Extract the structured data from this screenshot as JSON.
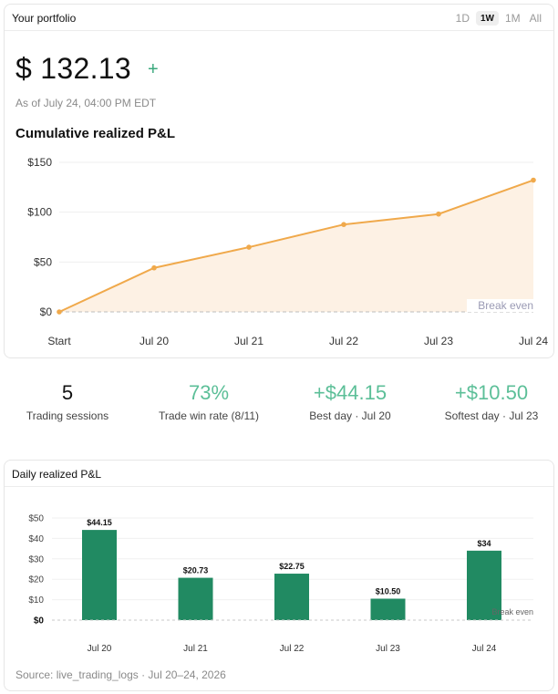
{
  "header": {
    "title": "Your portfolio",
    "ranges": [
      "1D",
      "1W",
      "1M",
      "All"
    ],
    "selected_range": "1W"
  },
  "summary": {
    "value": "$ 132.13",
    "as_of": "As of July 24, 04:00 PM EDT",
    "chart_title": "Cumulative realized P&L"
  },
  "stats": [
    {
      "value": "5",
      "label": "Trading sessions",
      "tone": "dark"
    },
    {
      "value": "73%",
      "label": "Trade win rate (8/11)",
      "tone": "green"
    },
    {
      "value": "+$44.15",
      "label": "Best day · Jul 20",
      "tone": "green"
    },
    {
      "value": "+$10.50",
      "label": "Softest day · Jul 23",
      "tone": "green"
    }
  ],
  "daily": {
    "title": "Daily realized P&L",
    "source": "Source: live_trading_logs · Jul 20–24, 2026"
  },
  "chart_data": [
    {
      "type": "area",
      "title": "Cumulative realized P&L",
      "categories": [
        "Start",
        "Jul 20",
        "Jul 21",
        "Jul 22",
        "Jul 23",
        "Jul 24"
      ],
      "values": [
        0,
        44.15,
        64.88,
        87.63,
        98.13,
        132.13
      ],
      "yticks": [
        "$0",
        "$50",
        "$100",
        "$150"
      ],
      "ylim": [
        0,
        150
      ],
      "annotation": "Break even",
      "color": "#f0a94b",
      "fill": "#fdf1e4",
      "grid": true
    },
    {
      "type": "bar",
      "title": "Daily realized P&L",
      "categories": [
        "Jul 20",
        "Jul 21",
        "Jul 22",
        "Jul 23",
        "Jul 24"
      ],
      "values": [
        44.15,
        20.73,
        22.75,
        10.5,
        34
      ],
      "labels": [
        "$44.15",
        "$20.73",
        "$22.75",
        "$10.50",
        "$34"
      ],
      "yticks": [
        "$0",
        "$10",
        "$20",
        "$30",
        "$40",
        "$50"
      ],
      "ylim": [
        0,
        50
      ],
      "annotation": "Break even",
      "color": "#218a62",
      "grid": true
    }
  ]
}
